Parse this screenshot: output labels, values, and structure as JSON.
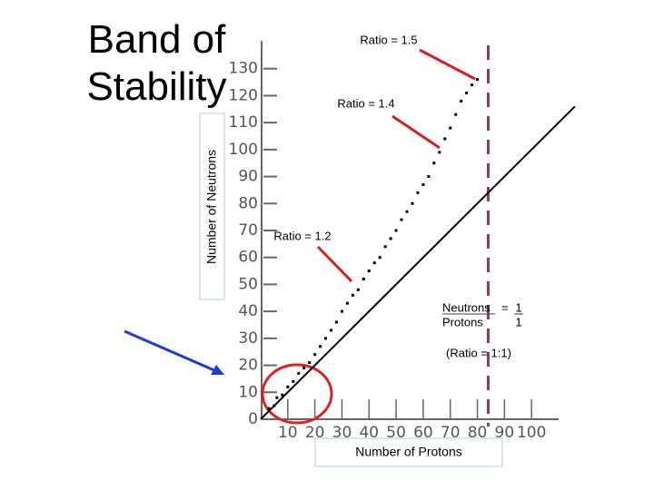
{
  "chart_data": {
    "type": "scatter",
    "title": "Band of Stability",
    "x_label": "Number of Protons",
    "y_label": "Number of Neutrons",
    "xlim": [
      0,
      110
    ],
    "ylim": [
      0,
      140
    ],
    "xticks": [
      10,
      20,
      30,
      40,
      50,
      60,
      70,
      80,
      90,
      100
    ],
    "yticks": [
      0,
      10,
      20,
      30,
      40,
      50,
      60,
      70,
      80,
      90,
      100,
      110,
      120,
      130
    ],
    "series": [
      {
        "type": "scatter",
        "color": "#000000",
        "x": [
          3,
          5,
          6,
          8,
          10,
          12,
          14,
          16,
          18,
          20,
          22,
          24,
          26,
          28,
          30,
          32,
          34,
          36,
          38,
          40,
          42,
          44,
          46,
          48,
          50,
          52,
          54,
          56,
          58,
          60,
          62,
          64,
          66,
          68,
          70,
          72,
          74,
          76,
          78,
          80
        ],
        "values": [
          4,
          5,
          8,
          9,
          12,
          14,
          17,
          19,
          21,
          24,
          27,
          30,
          33,
          36,
          40,
          43,
          46,
          48,
          52,
          55,
          58,
          60,
          64,
          67,
          70,
          74,
          77,
          80,
          84,
          87,
          90,
          95,
          99,
          104,
          108,
          113,
          118,
          121,
          124,
          126
        ]
      },
      {
        "type": "line",
        "color": "#000000",
        "x": [
          0,
          116
        ],
        "values": [
          0,
          116
        ]
      }
    ],
    "reference_line": {
      "x": 84,
      "color": "#8b3a62"
    },
    "annotations": [
      "Ratio = 1.5",
      "Ratio = 1.4",
      "Ratio = 1.2",
      "(Ratio = 1:1)"
    ],
    "ratio_note": {
      "numerator": "Neutrons",
      "equals": "=",
      "top": "1",
      "denominator": "Protons",
      "bottom": "1"
    }
  }
}
